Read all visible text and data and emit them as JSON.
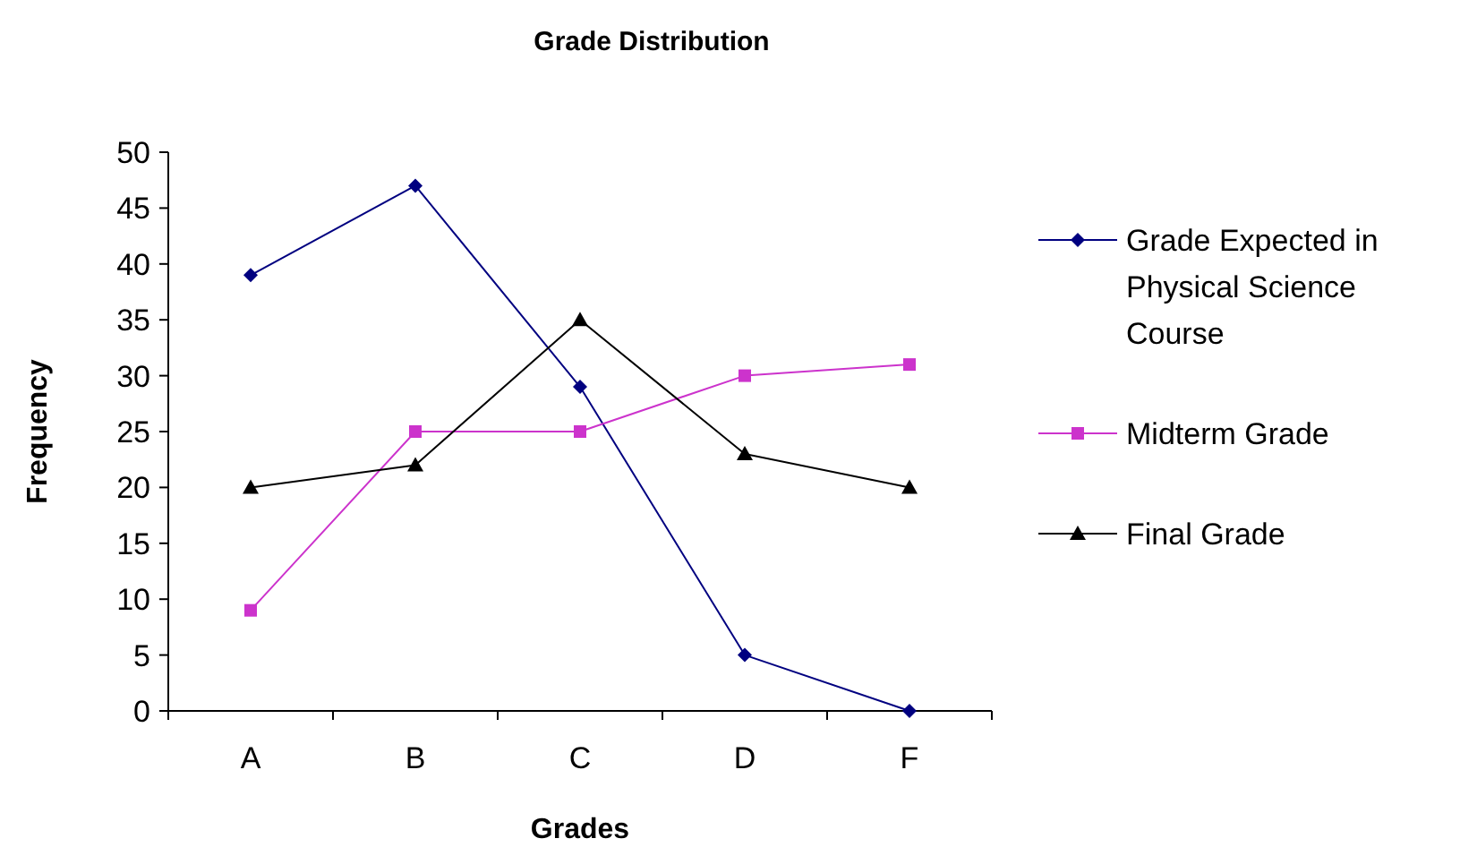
{
  "chart_data": {
    "type": "line",
    "title": "Grade Distribution",
    "xlabel": "Grades",
    "ylabel": "Frequency",
    "categories": [
      "A",
      "B",
      "C",
      "D",
      "F"
    ],
    "series": [
      {
        "name": "Grade Expected in Physical Science Course",
        "color": "#000080",
        "marker": "diamond",
        "values": [
          39,
          47,
          29,
          5,
          0
        ]
      },
      {
        "name": "Midterm Grade",
        "color": "#cc33cc",
        "marker": "square",
        "values": [
          9,
          25,
          25,
          30,
          31
        ]
      },
      {
        "name": "Final Grade",
        "color": "#000000",
        "marker": "triangle",
        "values": [
          20,
          22,
          35,
          23,
          20
        ]
      }
    ],
    "ylim": [
      0,
      50
    ],
    "yticks": [
      0,
      5,
      10,
      15,
      20,
      25,
      30,
      35,
      40,
      45,
      50
    ],
    "grid": false,
    "legend": "right",
    "line_style": "solid"
  }
}
